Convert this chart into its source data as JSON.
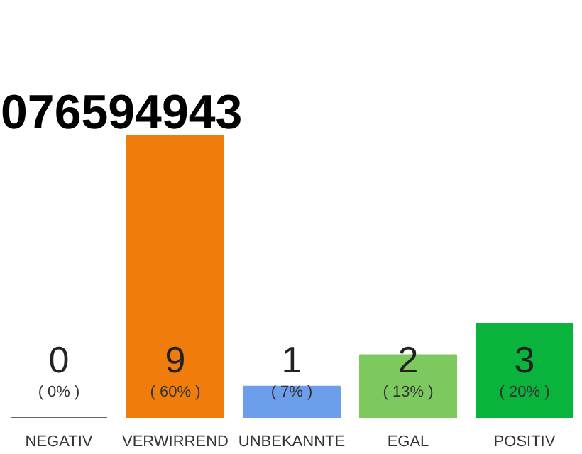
{
  "chart_data": {
    "type": "bar",
    "title": "076594943",
    "categories": [
      "NEGATIV",
      "VERWIRREND",
      "UNBEKANNTE",
      "EGAL",
      "POSITIV"
    ],
    "values": [
      0,
      9,
      1,
      2,
      3
    ],
    "colors": [
      "#666666",
      "#f07c0c",
      "#6d9eeb",
      "#7ec95f",
      "#0ab33c"
    ],
    "data_labels": true,
    "annotations": [
      "( 0% )",
      "( 60% )",
      "( 7% )",
      "( 13% )",
      "( 20% )"
    ],
    "grid": false
  }
}
